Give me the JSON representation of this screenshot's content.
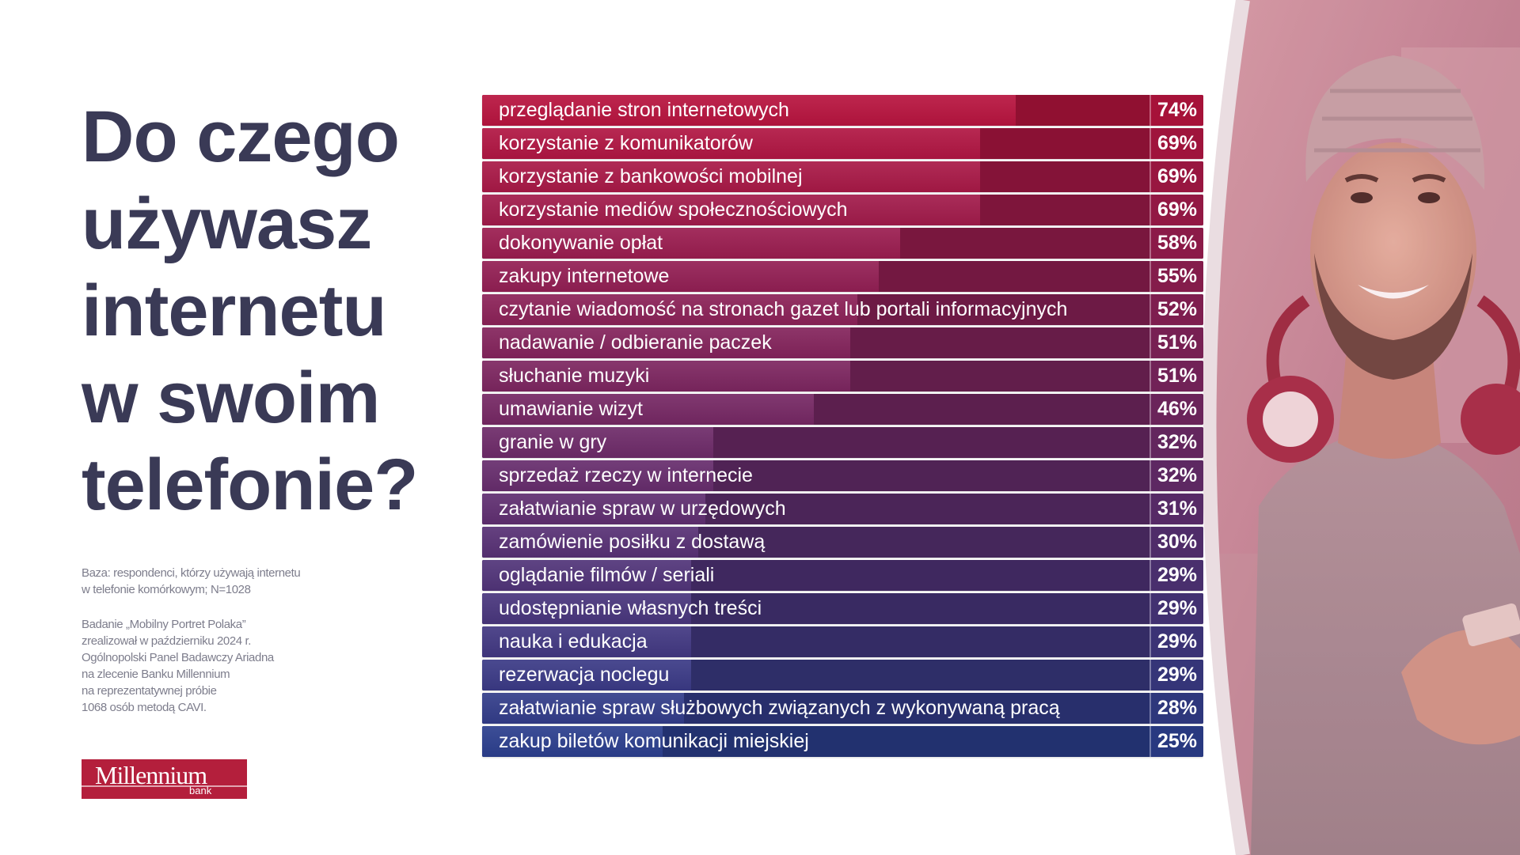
{
  "title": [
    "Do czego",
    "używasz",
    "internetu",
    "w swoim",
    "telefonie?"
  ],
  "base_note": [
    "Baza: respondenci, którzy używają internetu",
    "w telefonie komórkowym; N=1028"
  ],
  "study_note": [
    "Badanie „Mobilny Portret Polaka”",
    "zrealizował w październiku 2024 r.",
    "Ogólnopolski Panel Badawczy Ariadna",
    "na zlecenie Banku Millennium",
    "na reprezentatywnej próbie",
    "1068 osób metodą CAVI."
  ],
  "logo": {
    "name": "Millennium",
    "sub": "bank"
  },
  "colors": {
    "top": "#b8143f",
    "bottom": "#2c3f8e",
    "title": "#3a3a56"
  },
  "chart_data": {
    "type": "bar",
    "orientation": "horizontal",
    "unit": "%",
    "xlim": [
      0,
      100
    ],
    "categories": [
      "przeglądanie stron internetowych",
      "korzystanie z komunikatorów",
      "korzystanie z bankowości mobilnej",
      "korzystanie mediów społecznościowych",
      "dokonywanie opłat",
      "zakupy internetowe",
      "czytanie wiadomość na stronach gazet lub portali informacyjnych",
      "nadawanie / odbieranie paczek",
      "słuchanie muzyki",
      "umawianie wizyt",
      "granie w gry",
      "sprzedaż rzeczy w internecie",
      "załatwianie spraw w urzędowych",
      "zamówienie posiłku z dostawą",
      "oglądanie filmów / seriali",
      "udostępnianie własnych treści",
      "nauka i edukacja",
      "rezerwacja noclegu",
      "załatwianie spraw służbowych związanych z wykonywaną pracą",
      "zakup biletów komunikacji miejskiej"
    ],
    "values": [
      74,
      69,
      69,
      69,
      58,
      55,
      52,
      51,
      51,
      46,
      32,
      32,
      31,
      30,
      29,
      29,
      29,
      29,
      28,
      25
    ],
    "value_labels": [
      "74%",
      "69%",
      "69%",
      "69%",
      "58%",
      "55%",
      "52%",
      "51%",
      "51%",
      "46%",
      "32%",
      "32%",
      "31%",
      "30%",
      "29%",
      "29%",
      "29%",
      "29%",
      "28%",
      "25%"
    ]
  }
}
